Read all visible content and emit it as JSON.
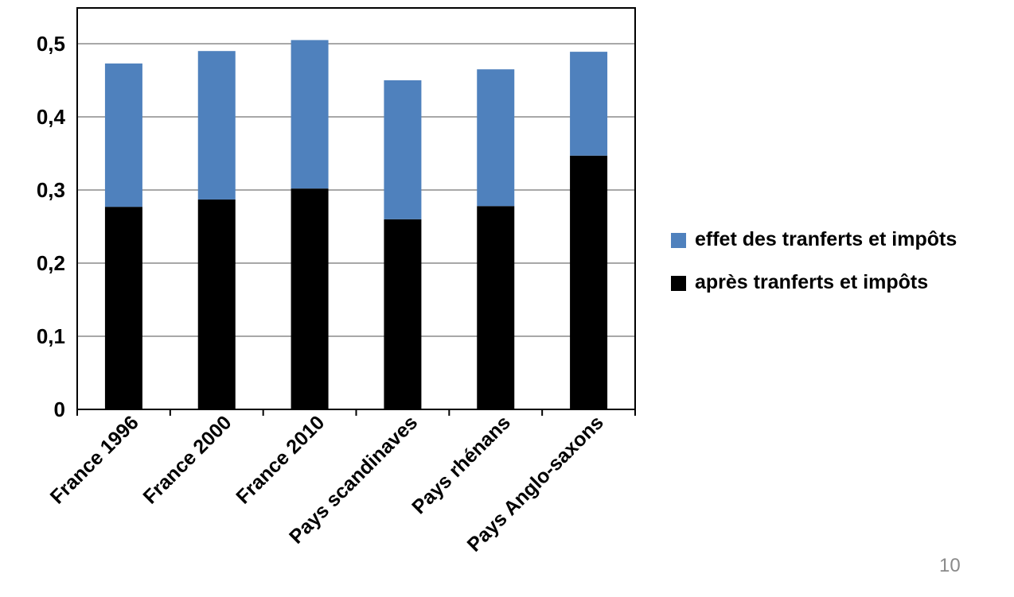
{
  "chart_data": {
    "type": "bar",
    "stacked": true,
    "title": "",
    "xlabel": "",
    "ylabel": "",
    "categories": [
      "France 1996",
      "France 2000",
      "France 2010",
      "Pays scandinaves",
      "Pays rhénans",
      "Pays Anglo-saxons"
    ],
    "series": [
      {
        "name": "après tranferts et impôts",
        "values": [
          0.277,
          0.287,
          0.302,
          0.26,
          0.278,
          0.347
        ],
        "color": "#000000"
      },
      {
        "name": "effet des tranferts et impôts",
        "values": [
          0.196,
          0.203,
          0.203,
          0.19,
          0.187,
          0.142
        ],
        "color": "#4f81bd"
      }
    ],
    "ylim": [
      0,
      0.5
    ],
    "yticks": [
      {
        "value": 0,
        "label": "0"
      },
      {
        "value": 0.1,
        "label": "0,1"
      },
      {
        "value": 0.2,
        "label": "0,2"
      },
      {
        "value": 0.3,
        "label": "0,3"
      },
      {
        "value": 0.4,
        "label": "0,4"
      },
      {
        "value": 0.5,
        "label": "0,5"
      }
    ],
    "grid": true,
    "legend_position": "right"
  },
  "legend": {
    "items": [
      {
        "label": "effet des tranferts et impôts",
        "color": "#4f81bd"
      },
      {
        "label": "après tranferts et impôts",
        "color": "#000000"
      }
    ]
  },
  "page_number": "10"
}
